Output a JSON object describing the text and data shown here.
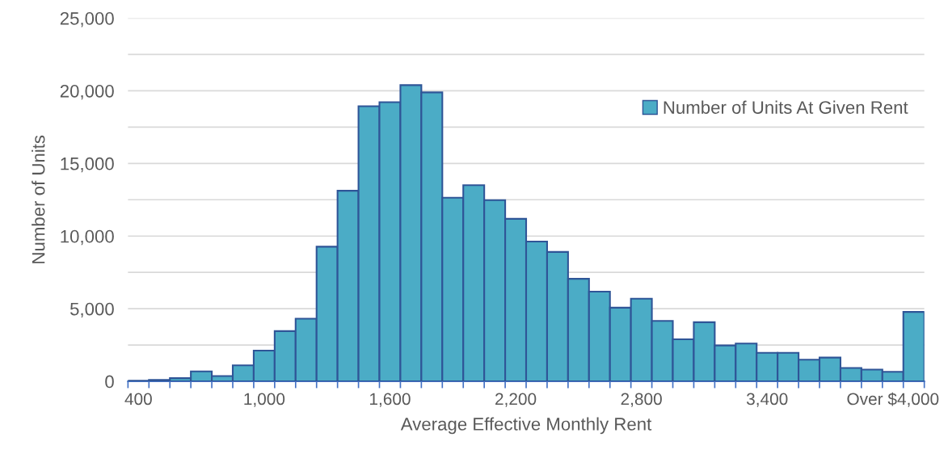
{
  "chart_data": {
    "type": "bar",
    "xlabel": "Average Effective Monthly Rent",
    "ylabel": "Number of Units",
    "categories": [
      "400",
      null,
      null,
      null,
      null,
      null,
      "1,000",
      null,
      null,
      null,
      null,
      null,
      "1,600",
      null,
      null,
      null,
      null,
      null,
      "2,200",
      null,
      null,
      null,
      null,
      null,
      "2,800",
      null,
      null,
      null,
      null,
      null,
      "3,400",
      null,
      null,
      null,
      null,
      null,
      "Over $4,000",
      null
    ],
    "series": [
      {
        "name": "Number of Units At Given Rent",
        "color": "#4bacc6",
        "values": [
          40,
          100,
          220,
          690,
          370,
          1100,
          2120,
          3460,
          4310,
          9270,
          13120,
          18940,
          19220,
          20390,
          19890,
          12640,
          13500,
          12470,
          11190,
          9620,
          8910,
          7060,
          6180,
          5070,
          5690,
          4160,
          2900,
          4070,
          2470,
          2600,
          1960,
          1960,
          1490,
          1640,
          920,
          810,
          660,
          4780
        ]
      }
    ],
    "ylim": [
      0,
      25000
    ],
    "yticks": [
      {
        "value": 0,
        "label": "0"
      },
      {
        "value": 2500,
        "label": null
      },
      {
        "value": 5000,
        "label": "5,000"
      },
      {
        "value": 7500,
        "label": null
      },
      {
        "value": 10000,
        "label": "10,000"
      },
      {
        "value": 12500,
        "label": null
      },
      {
        "value": 15000,
        "label": "15,000"
      },
      {
        "value": 17500,
        "label": null
      },
      {
        "value": 20000,
        "label": "20,000"
      },
      {
        "value": 22500,
        "label": null
      },
      {
        "value": 25000,
        "label": "25,000"
      }
    ],
    "grid": "y",
    "legend": "right"
  }
}
